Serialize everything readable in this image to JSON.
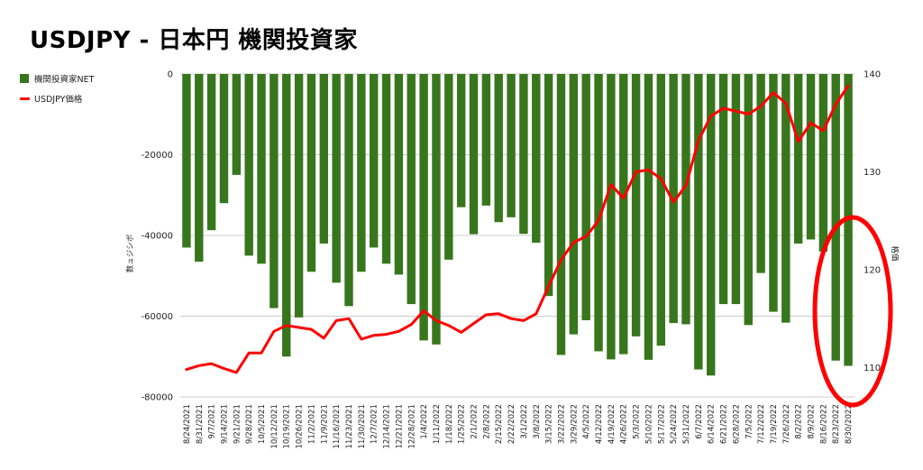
{
  "title": "USDJPY - 日本円 機関投資家",
  "legend": [
    {
      "label": "機関投資家NET",
      "color": "#38761d"
    },
    {
      "label": "USDJPY価格",
      "color": "#ff0000"
    }
  ],
  "colors": {
    "bars": "#38761d",
    "line": "#ff0000",
    "highlight": "#ff0000",
    "grid": "#cccccc"
  },
  "chart_data": {
    "type": "bar+line",
    "title": "USDJPY - 日本円 機関投資家",
    "ylabel_left": "数ュジシボ",
    "ylabel_right": "格価",
    "ylim_left": [
      -80000,
      0
    ],
    "yticks_left": [
      "0",
      "-20000",
      "-40000",
      "-60000",
      "-80000"
    ],
    "ylim_right": [
      107,
      140
    ],
    "yticks_right": [
      "140",
      "130",
      "120",
      "110"
    ],
    "grid": true,
    "legend_position": "top-left",
    "annotation": "red ellipse highlighting the last weeks",
    "categories": [
      "8/24/2021",
      "8/31/2021",
      "9/7/2021",
      "9/14/2021",
      "9/21/2021",
      "9/28/2021",
      "10/5/2021",
      "10/12/2021",
      "10/19/2021",
      "10/26/2021",
      "11/2/2021",
      "11/9/2021",
      "11/16/2021",
      "11/23/2021",
      "11/30/2021",
      "12/7/2021",
      "12/14/2021",
      "12/21/2021",
      "12/28/2021",
      "1/4/2022",
      "1/11/2022",
      "1/18/2022",
      "1/25/2022",
      "2/1/2022",
      "2/8/2022",
      "2/15/2022",
      "2/22/2022",
      "3/1/2022",
      "3/8/2022",
      "3/15/2022",
      "3/22/2022",
      "3/29/2022",
      "4/5/2022",
      "4/12/2022",
      "4/19/2022",
      "4/26/2022",
      "5/3/2022",
      "5/10/2022",
      "5/17/2022",
      "5/24/2022",
      "5/31/2022",
      "6/7/2022",
      "6/14/2022",
      "6/21/2022",
      "6/28/2022",
      "7/5/2022",
      "7/12/2022",
      "7/19/2022",
      "7/26/2022",
      "8/2/2022",
      "8/9/2022",
      "8/16/2022",
      "8/23/2022",
      "8/30/2022"
    ],
    "x_tick_labels": [
      "8/24/2021",
      "8/31/2021",
      "9/7/2021",
      "9/14/2021",
      "9/21/2021",
      "9/28/2021",
      "10/5/2021",
      "10/12/2021",
      "10/19/2021",
      "10/26/2021",
      "11/2/2021",
      "11/9/2021",
      "11/16/2021",
      "11/23/2021",
      "11/30/2021",
      "12/7/2021",
      "12/14/2021",
      "12/21/2021",
      "12/28/2021",
      "1/4/2022",
      "1/11/2022",
      "1/18/2022",
      "1/25/2022",
      "2/1/2022",
      "2/8/2022",
      "2/15/2022",
      "2/22/2022",
      "3/1/2022",
      "3/8/2022",
      "3/15/2022",
      "3/22/2022",
      "3/29/2022",
      "4/5/2022",
      "4/12/2022",
      "4/19/2022",
      "4/26/2022",
      "5/3/2022",
      "5/10/2022",
      "5/17/2022",
      "5/24/2022",
      "5/31/2022",
      "6/7/2022",
      "6/14/2022",
      "6/21/2022",
      "6/28/2022",
      "7/5/2022",
      "7/12/2022",
      "7/19/2022",
      "7/26/2022",
      "8/2/2022",
      "8/9/2022",
      "8/16/2022",
      "8/23/2022",
      "8/30/2022"
    ],
    "series": [
      {
        "name": "機関投資家NET",
        "type": "bar",
        "axis": "left",
        "values": [
          -43000,
          -46500,
          -38700,
          -32000,
          -25000,
          -45000,
          -47000,
          -58000,
          -70000,
          -60300,
          -49000,
          -42000,
          -51700,
          -57500,
          -49000,
          -43000,
          -47000,
          -49700,
          -57000,
          -66000,
          -67000,
          -46000,
          -33000,
          -39700,
          -32600,
          -36700,
          -35500,
          -39600,
          -41800,
          -55000,
          -69600,
          -64500,
          -61000,
          -68700,
          -70700,
          -69400,
          -65000,
          -70800,
          -67300,
          -61700,
          -62000,
          -73200,
          -74700,
          -57000,
          -57000,
          -62200,
          -49300,
          -58900,
          -61600,
          -42000,
          -41000,
          -44000,
          -71000,
          -72300
        ]
      },
      {
        "name": "USDJPY価格",
        "type": "line",
        "axis": "right",
        "values": [
          109.8,
          110.2,
          110.4,
          109.9,
          109.5,
          111.5,
          111.5,
          113.7,
          114.3,
          114.1,
          113.9,
          113.0,
          114.8,
          115.0,
          112.9,
          113.3,
          113.4,
          113.7,
          114.4,
          115.8,
          114.8,
          114.3,
          113.6,
          114.5,
          115.4,
          115.5,
          115.0,
          114.8,
          115.5,
          118.3,
          121.0,
          122.8,
          123.4,
          125.0,
          128.7,
          127.3,
          130.0,
          130.2,
          129.3,
          126.9,
          128.6,
          133.2,
          135.7,
          136.5,
          136.2,
          135.9,
          136.7,
          138.1,
          137.0,
          133.1,
          135.0,
          134.2,
          136.9,
          138.8
        ]
      }
    ]
  }
}
